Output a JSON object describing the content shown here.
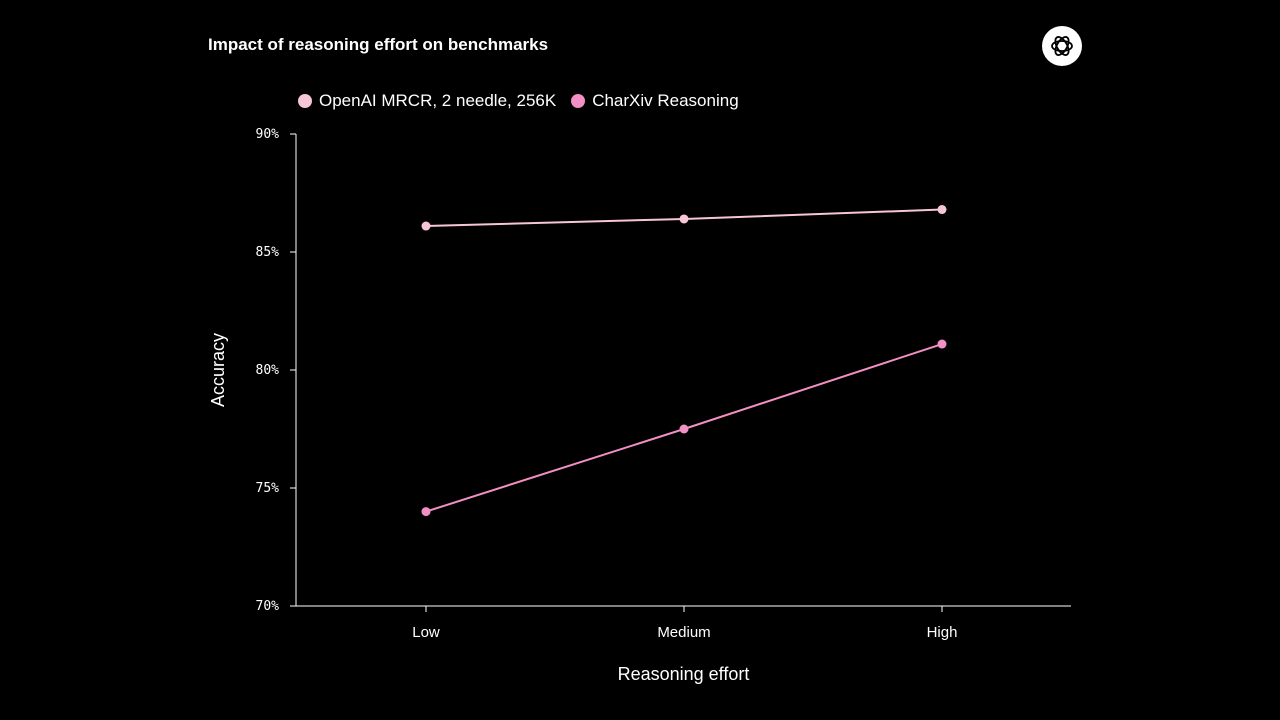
{
  "chart_data": {
    "type": "line",
    "title": "Impact of reasoning effort on benchmarks",
    "xlabel": "Reasoning effort",
    "ylabel": "Accuracy",
    "categories": [
      "Low",
      "Medium",
      "High"
    ],
    "ylim": [
      70,
      90
    ],
    "yticks": [
      70,
      75,
      80,
      85,
      90
    ],
    "ytick_labels": [
      "70%",
      "75%",
      "80%",
      "85%",
      "90%"
    ],
    "grid": false,
    "legend_position": "top-left",
    "series": [
      {
        "name": "OpenAI MRCR, 2 needle, 256K",
        "values": [
          86.1,
          86.4,
          86.8
        ],
        "color": "#f7c6d6"
      },
      {
        "name": "CharXiv Reasoning",
        "values": [
          74.0,
          77.5,
          81.1
        ],
        "color": "#f28fc4"
      }
    ]
  },
  "logo": {
    "icon": "openai-logo-icon",
    "background": "#ffffff"
  },
  "colors": {
    "background": "#000000",
    "text": "#ffffff",
    "axis": "#ffffff"
  }
}
